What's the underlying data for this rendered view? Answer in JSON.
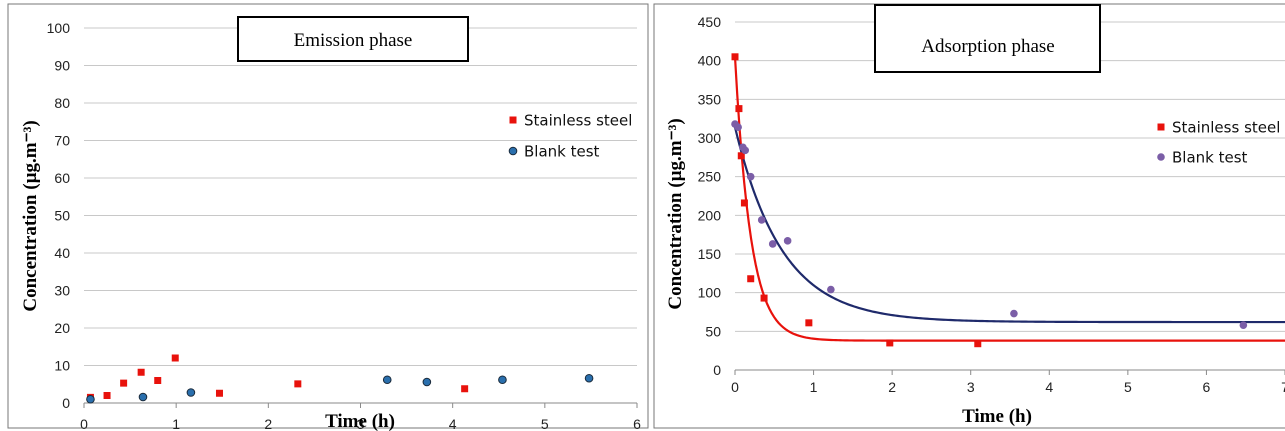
{
  "chart_data": [
    {
      "type": "scatter",
      "title": "Emission phase",
      "xlabel": "Time (h)",
      "ylabel": "Concentration (µg.m⁻³)",
      "xlim": [
        0,
        6
      ],
      "ylim": [
        0,
        100
      ],
      "xticks": [
        "0",
        "1",
        "2",
        "3",
        "4",
        "5",
        "6"
      ],
      "yticks": [
        "0",
        "10",
        "20",
        "30",
        "40",
        "50",
        "60",
        "70",
        "80",
        "90",
        "100"
      ],
      "grid": "horizontal",
      "legend_position": "right",
      "series": [
        {
          "name": "Stainless steel",
          "marker": "square",
          "color": "#e8120c",
          "points": [
            [
              0.07,
              1.5
            ],
            [
              0.25,
              2
            ],
            [
              0.43,
              5.3
            ],
            [
              0.62,
              8.2
            ],
            [
              0.8,
              6
            ],
            [
              0.99,
              12
            ],
            [
              1.47,
              2.6
            ],
            [
              2.32,
              5.1
            ],
            [
              4.13,
              3.8
            ]
          ]
        },
        {
          "name": "Blank test",
          "marker": "circle",
          "color": "#2a6fad",
          "points": [
            [
              0.07,
              1
            ],
            [
              0.64,
              1.6
            ],
            [
              1.16,
              2.8
            ],
            [
              3.29,
              6.2
            ],
            [
              3.72,
              5.6
            ],
            [
              4.54,
              6.2
            ],
            [
              5.48,
              6.6
            ]
          ]
        }
      ]
    },
    {
      "type": "scatter",
      "title": "Adsorption phase",
      "xlabel": "Time (h)",
      "ylabel": "Concentration (µg.m⁻³)",
      "xlim": [
        0,
        7
      ],
      "ylim": [
        0,
        450
      ],
      "xticks": [
        "0",
        "1",
        "2",
        "3",
        "4",
        "5",
        "6",
        "7"
      ],
      "yticks": [
        "0",
        "50",
        "100",
        "150",
        "200",
        "250",
        "300",
        "350",
        "400",
        "450"
      ],
      "grid": "horizontal",
      "legend_position": "right",
      "series": [
        {
          "name": "Stainless steel",
          "marker": "square",
          "color": "#e8120c",
          "points": [
            [
              0.0,
              405
            ],
            [
              0.05,
              338
            ],
            [
              0.08,
              277
            ],
            [
              0.12,
              216
            ],
            [
              0.2,
              118
            ],
            [
              0.37,
              93
            ],
            [
              0.94,
              61
            ],
            [
              1.97,
              35
            ],
            [
              3.09,
              34
            ]
          ],
          "fit": {
            "model": "plateau+amp*exp(-t/tau)",
            "plateau": 38,
            "amp": 367,
            "tau": 0.2,
            "color": "#e8120c"
          }
        },
        {
          "name": "Blank test",
          "marker": "circle",
          "color": "#7b5ea7",
          "points": [
            [
              0.0,
              318
            ],
            [
              0.04,
              314
            ],
            [
              0.1,
              288
            ],
            [
              0.13,
              284
            ],
            [
              0.2,
              250
            ],
            [
              0.34,
              194
            ],
            [
              0.48,
              163
            ],
            [
              0.67,
              167
            ],
            [
              1.22,
              104
            ],
            [
              3.55,
              73
            ],
            [
              6.47,
              58
            ]
          ],
          "fit": {
            "model": "plateau+amp*exp(-t/tau)",
            "plateau": 62,
            "amp": 252,
            "tau": 0.6,
            "color": "#1f2a6b"
          }
        }
      ]
    }
  ]
}
